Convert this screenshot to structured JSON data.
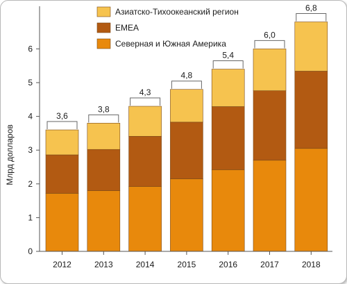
{
  "chart_data": {
    "type": "bar",
    "stacked": true,
    "categories": [
      "2012",
      "2013",
      "2014",
      "2015",
      "2016",
      "2017",
      "2018"
    ],
    "series": [
      {
        "name": "Северная и Южная Америка",
        "color": "#e8890c",
        "values": [
          1.72,
          1.8,
          1.92,
          2.15,
          2.42,
          2.7,
          3.05
        ]
      },
      {
        "name": "EMEA",
        "color": "#b25a12",
        "values": [
          1.14,
          1.22,
          1.49,
          1.68,
          1.87,
          2.06,
          2.29
        ]
      },
      {
        "name": "Азиатско-Тихоокеанский регион",
        "color": "#f6c34f",
        "values": [
          0.74,
          0.78,
          0.89,
          0.97,
          1.11,
          1.24,
          1.46
        ]
      }
    ],
    "totals": [
      "3,6",
      "3,8",
      "4,3",
      "4,8",
      "5,4",
      "6,0",
      "6,8"
    ],
    "total_values": [
      3.6,
      3.8,
      4.3,
      4.8,
      5.4,
      6.0,
      6.8
    ],
    "ylabel": "Млрд долларов",
    "xlabel": "",
    "ylim": [
      0,
      7
    ],
    "yticks": [
      "0",
      "1",
      "2",
      "3",
      "4",
      "5",
      "6"
    ],
    "ytick_values": [
      0,
      1,
      2,
      3,
      4,
      5,
      6
    ],
    "grid": false,
    "legend_position": "top-center",
    "legend_order": [
      2,
      1,
      0
    ]
  }
}
